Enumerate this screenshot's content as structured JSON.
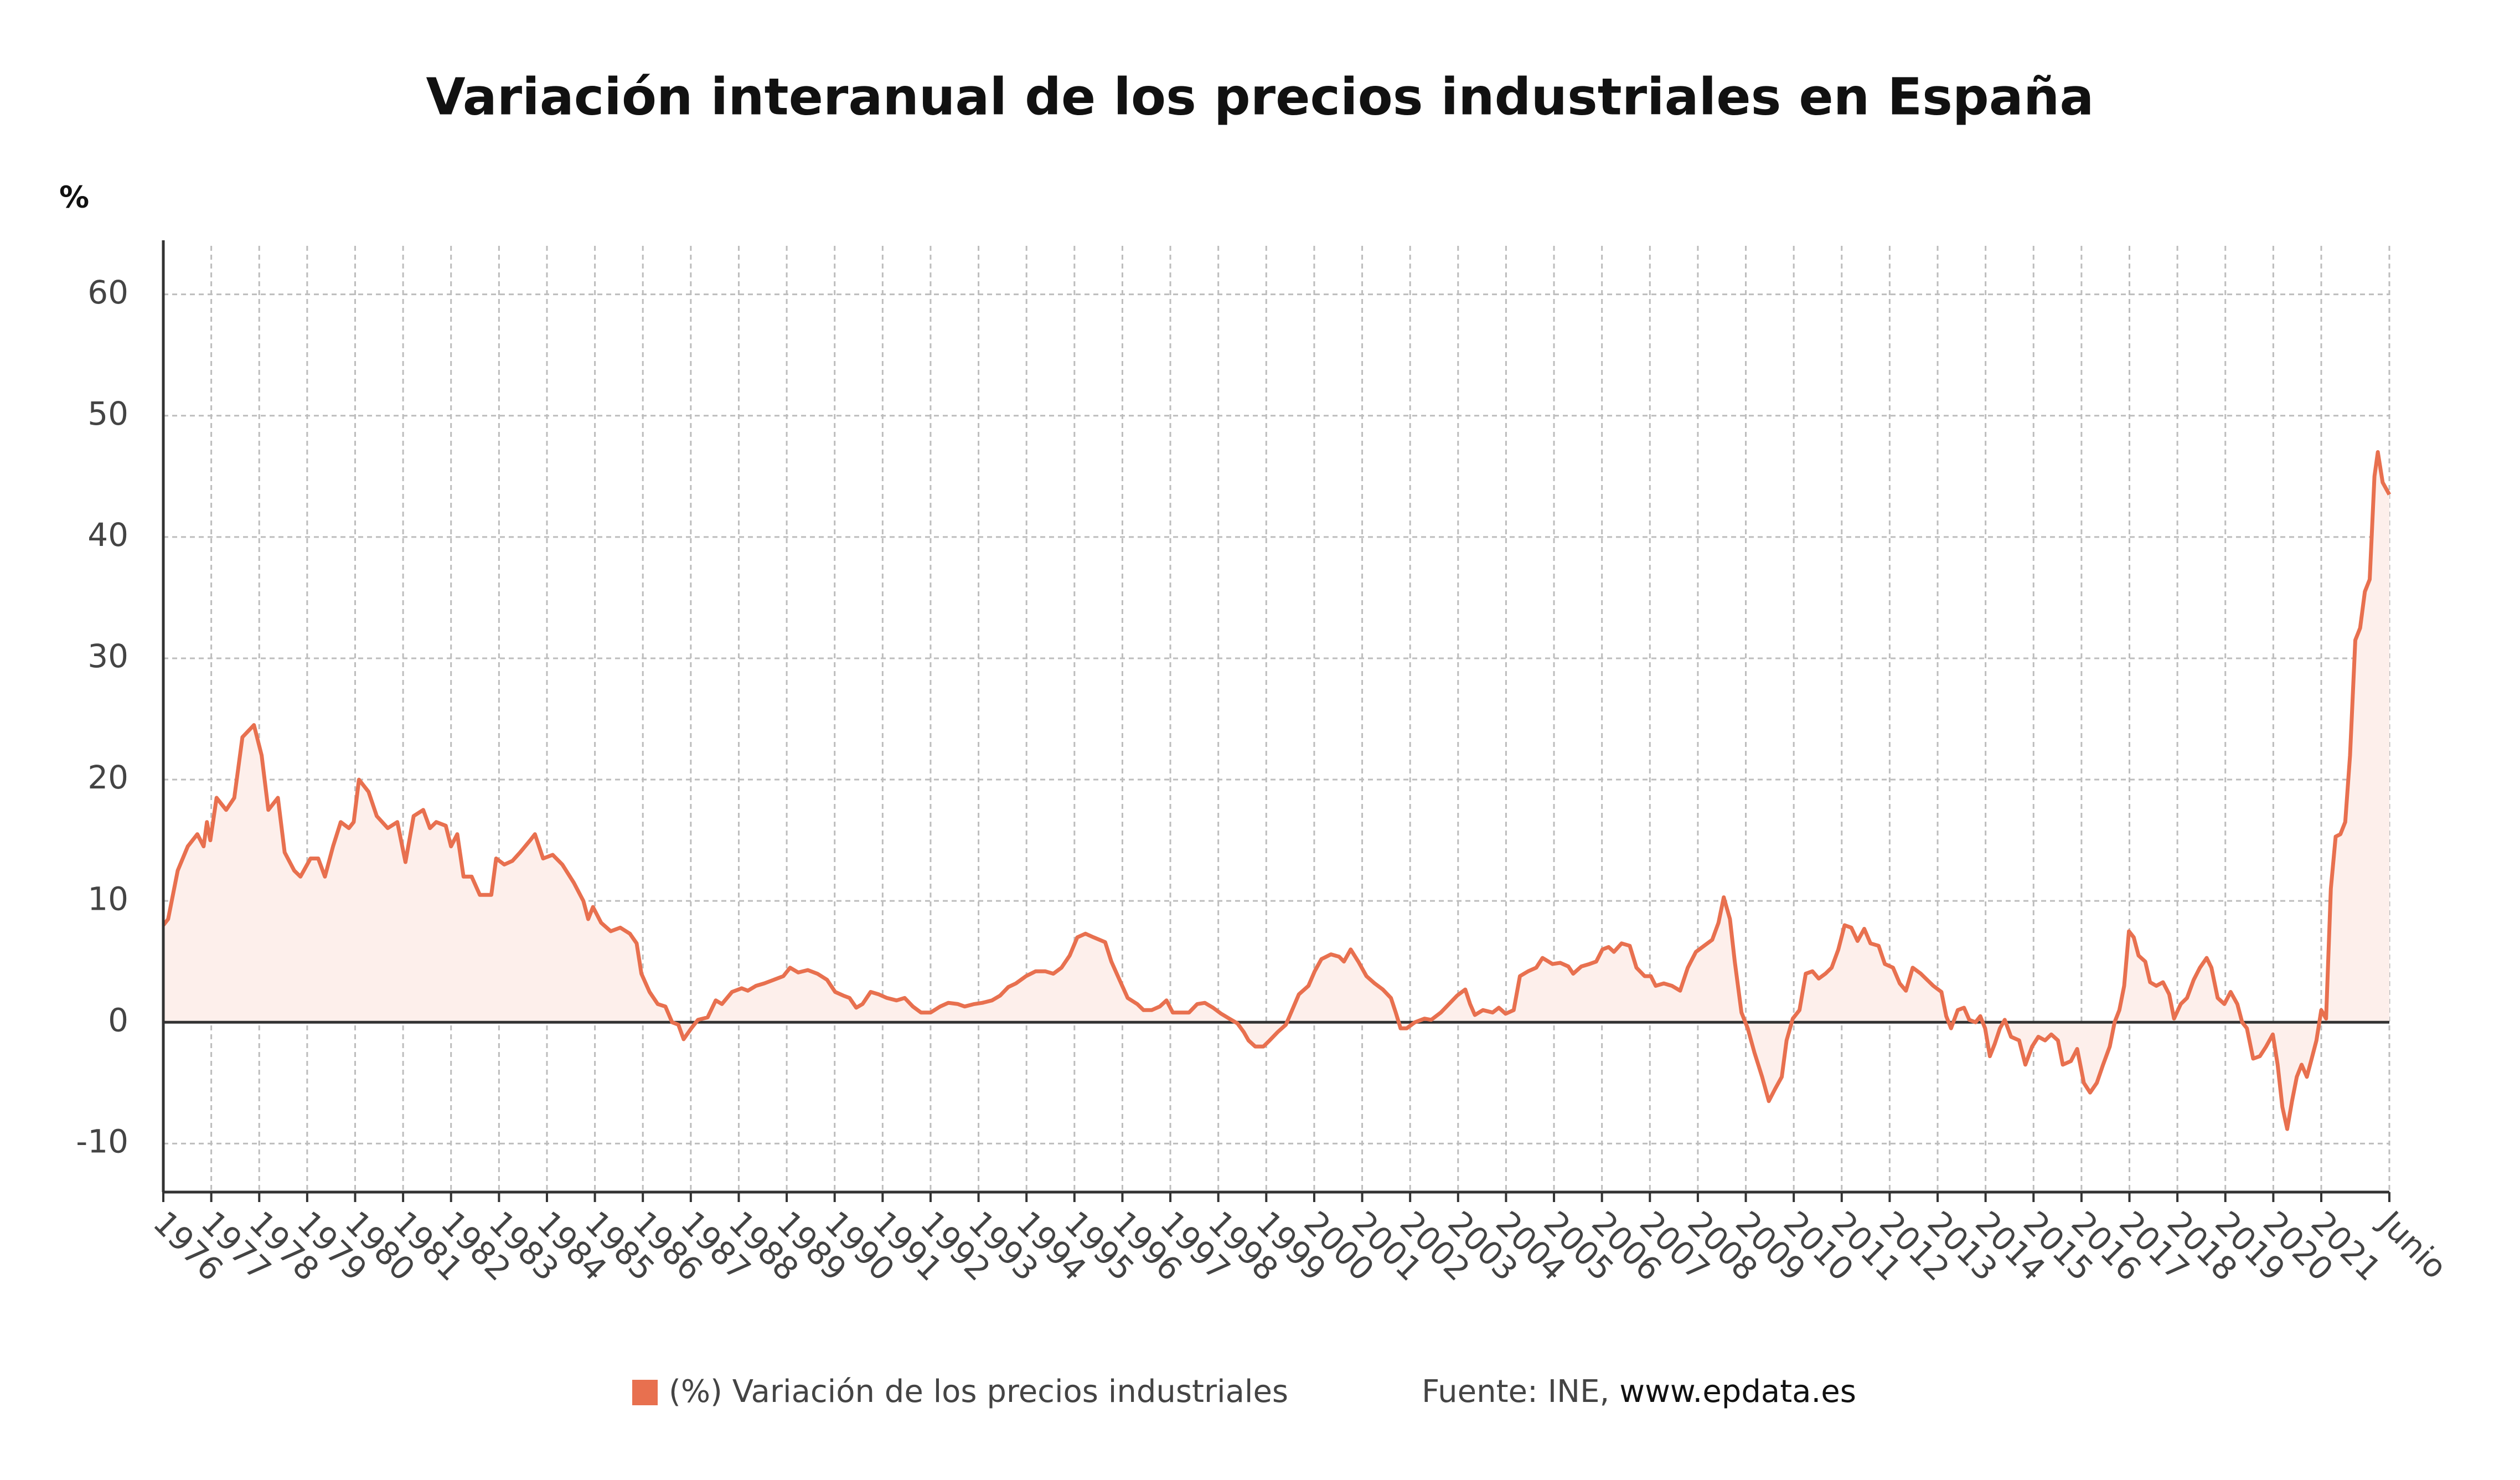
{
  "chart_data": {
    "type": "line",
    "title": "Variación interanual de los precios industriales en España",
    "y_label": "%",
    "source": {
      "text": "Fuente: INE,",
      "link": "www.epdata.es"
    },
    "grid": true,
    "fill_area": true,
    "xlim": [
      1976,
      2022.42
    ],
    "ylim": [
      -14,
      64
    ],
    "yticks": [
      -10,
      0,
      10,
      20,
      30,
      40,
      50,
      60
    ],
    "xticks": [
      1976,
      1977,
      1978,
      1979,
      1980,
      1981,
      1982,
      1983,
      1984,
      1985,
      1986,
      1987,
      1988,
      1989,
      1990,
      1991,
      1992,
      1993,
      1994,
      1995,
      1996,
      1997,
      1998,
      1999,
      2000,
      2001,
      2002,
      2003,
      2004,
      2005,
      2006,
      2007,
      2008,
      2009,
      2010,
      2011,
      2012,
      2013,
      2014,
      2015,
      2016,
      2017,
      2018,
      2019,
      2020,
      2021,
      {
        "value": 2022.42,
        "label": "Junio"
      }
    ],
    "x": [
      1976.0,
      1976.1,
      1976.3,
      1976.51,
      1976.71,
      1976.84,
      1976.91,
      1976.98,
      1977.11,
      1977.31,
      1977.48,
      1977.65,
      1977.89,
      1978.05,
      1978.19,
      1978.39,
      1978.53,
      1978.73,
      1978.86,
      1979.07,
      1979.23,
      1979.37,
      1979.54,
      1979.7,
      1979.87,
      1979.97,
      1980.08,
      1980.28,
      1980.45,
      1980.68,
      1980.88,
      1981.05,
      1981.22,
      1981.42,
      1981.56,
      1981.69,
      1981.89,
      1982.0,
      1982.13,
      1982.26,
      1982.43,
      1982.6,
      1982.84,
      1982.94,
      1983.11,
      1983.28,
      1983.44,
      1983.65,
      1983.75,
      1983.92,
      1984.12,
      1984.32,
      1984.56,
      1984.76,
      1984.86,
      1984.96,
      1985.13,
      1985.33,
      1985.53,
      1985.73,
      1985.87,
      1985.97,
      1986.14,
      1986.31,
      1986.47,
      1986.61,
      1986.74,
      1986.85,
      1987.01,
      1987.15,
      1987.35,
      1987.52,
      1987.65,
      1987.86,
      1988.06,
      1988.19,
      1988.36,
      1988.53,
      1988.73,
      1988.93,
      1989.07,
      1989.24,
      1989.44,
      1989.64,
      1989.84,
      1990.01,
      1990.18,
      1990.31,
      1990.45,
      1990.58,
      1990.75,
      1990.92,
      1991.09,
      1991.29,
      1991.46,
      1991.63,
      1991.8,
      1992.0,
      1992.2,
      1992.37,
      1992.57,
      1992.71,
      1992.91,
      1993.08,
      1993.28,
      1993.45,
      1993.62,
      1993.78,
      1993.99,
      1994.19,
      1994.39,
      1994.56,
      1994.73,
      1994.9,
      1995.06,
      1995.23,
      1995.4,
      1995.64,
      1995.77,
      1995.94,
      1996.11,
      1996.31,
      1996.44,
      1996.61,
      1996.78,
      1996.92,
      1997.05,
      1997.22,
      1997.39,
      1997.56,
      1997.72,
      1997.89,
      1998.06,
      1998.23,
      1998.4,
      1998.53,
      1998.63,
      1998.77,
      1998.94,
      1999.07,
      1999.24,
      1999.41,
      1999.54,
      1999.68,
      1999.88,
      2000.01,
      2000.15,
      2000.35,
      2000.52,
      2000.62,
      2000.76,
      2000.92,
      2001.09,
      2001.26,
      2001.43,
      2001.6,
      2001.7,
      2001.8,
      2001.93,
      2002.1,
      2002.3,
      2002.44,
      2002.64,
      2002.81,
      2002.98,
      2003.15,
      2003.25,
      2003.35,
      2003.52,
      2003.72,
      2003.85,
      2003.99,
      2004.16,
      2004.29,
      2004.46,
      2004.63,
      2004.76,
      2004.97,
      2005.13,
      2005.3,
      2005.4,
      2005.57,
      2005.74,
      2005.88,
      2006.01,
      2006.14,
      2006.25,
      2006.41,
      2006.58,
      2006.72,
      2006.89,
      2007.02,
      2007.12,
      2007.29,
      2007.46,
      2007.63,
      2007.79,
      2007.96,
      2008.13,
      2008.3,
      2008.43,
      2008.54,
      2008.67,
      2008.77,
      2008.91,
      2009.04,
      2009.18,
      2009.34,
      2009.48,
      2009.61,
      2009.75,
      2009.85,
      2009.98,
      2010.12,
      2010.25,
      2010.39,
      2010.52,
      2010.66,
      2010.79,
      2010.93,
      2011.06,
      2011.2,
      2011.33,
      2011.47,
      2011.6,
      2011.77,
      2011.9,
      2012.07,
      2012.21,
      2012.34,
      2012.48,
      2012.65,
      2012.78,
      2012.91,
      2013.08,
      2013.18,
      2013.28,
      2013.42,
      2013.55,
      2013.66,
      2013.79,
      2013.89,
      2013.99,
      2014.09,
      2014.19,
      2014.3,
      2014.4,
      2014.53,
      2014.7,
      2014.83,
      2014.97,
      2015.1,
      2015.24,
      2015.37,
      2015.51,
      2015.61,
      2015.78,
      2015.91,
      2016.05,
      2016.18,
      2016.32,
      2016.45,
      2016.59,
      2016.69,
      2016.79,
      2016.89,
      2016.99,
      2017.09,
      2017.19,
      2017.33,
      2017.43,
      2017.56,
      2017.7,
      2017.83,
      2017.93,
      2018.07,
      2018.2,
      2018.34,
      2018.47,
      2018.61,
      2018.71,
      2018.84,
      2018.98,
      2019.11,
      2019.25,
      2019.35,
      2019.45,
      2019.58,
      2019.72,
      2019.85,
      2019.99,
      2020.09,
      2020.19,
      2020.29,
      2020.39,
      2020.49,
      2020.59,
      2020.7,
      2020.8,
      2020.9,
      2021.0,
      2021.1,
      2021.2,
      2021.3,
      2021.4,
      2021.5,
      2021.6,
      2021.71,
      2021.81,
      2021.91,
      2022.01,
      2022.11,
      2022.18,
      2022.28,
      2022.42
    ],
    "series": [
      {
        "name": "(%) Variación de los precios industriales",
        "color": "#e8704f",
        "fill_color": "#fdefeb",
        "values": [
          8,
          8.5,
          12.5,
          14.5,
          15.5,
          14.5,
          16.5,
          15,
          18.5,
          17.5,
          18.5,
          23.5,
          24.5,
          22,
          17.5,
          18.5,
          14,
          12.5,
          12,
          13.5,
          13.5,
          12,
          14.5,
          16.5,
          16,
          16.5,
          20,
          19,
          17,
          16,
          16.5,
          13.2,
          17,
          17.5,
          16,
          16.5,
          16.2,
          14.5,
          15.5,
          12,
          12,
          10.5,
          10.5,
          13.5,
          13,
          13.3,
          14,
          15,
          15.5,
          13.5,
          13.8,
          13,
          11.5,
          10,
          8.5,
          9.5,
          8.2,
          7.5,
          7.8,
          7.3,
          6.5,
          4,
          2.5,
          1.5,
          1.3,
          0,
          -0.2,
          -1.4,
          -0.5,
          0.2,
          0.4,
          1.8,
          1.5,
          2.5,
          2.8,
          2.6,
          3,
          3.2,
          3.5,
          3.8,
          4.5,
          4.1,
          4.3,
          4,
          3.5,
          2.5,
          2.2,
          2,
          1.2,
          1.5,
          2.5,
          2.3,
          2,
          1.8,
          2,
          1.3,
          0.8,
          0.8,
          1.3,
          1.6,
          1.5,
          1.3,
          1.5,
          1.6,
          1.8,
          2.2,
          2.9,
          3.2,
          3.8,
          4.2,
          4.2,
          4,
          4.5,
          5.5,
          7,
          7.3,
          7,
          6.6,
          5,
          3.5,
          2,
          1.5,
          1,
          1,
          1.3,
          1.8,
          0.8,
          0.8,
          0.8,
          1.5,
          1.6,
          1.2,
          0.7,
          0.3,
          -0.1,
          -0.8,
          -1.5,
          -2,
          -2,
          -1.5,
          -0.8,
          -0.2,
          1,
          2.3,
          3,
          4.2,
          5.2,
          5.6,
          5.4,
          5,
          6,
          5,
          3.8,
          3.2,
          2.7,
          2,
          0.8,
          -0.5,
          -0.5,
          0,
          0.3,
          0.2,
          0.8,
          1.5,
          2.2,
          2.7,
          1.5,
          0.6,
          1,
          0.8,
          1.2,
          0.7,
          1,
          3.8,
          4.2,
          4.5,
          5.3,
          4.8,
          4.9,
          4.6,
          4,
          4.6,
          4.8,
          5,
          6,
          6.2,
          5.8,
          6.5,
          6.3,
          4.5,
          3.8,
          3.8,
          3,
          3.2,
          3,
          2.6,
          4.5,
          5.8,
          6.3,
          6.8,
          8.2,
          10.3,
          8.5,
          5,
          0.8,
          -0.5,
          -2.5,
          -4.5,
          -6.5,
          -5.5,
          -4.5,
          -1.5,
          0.3,
          1,
          4,
          4.2,
          3.6,
          4,
          4.5,
          6,
          8,
          7.8,
          6.7,
          7.7,
          6.5,
          6.3,
          4.8,
          4.5,
          3.2,
          2.6,
          4.5,
          4,
          3.5,
          3,
          2.5,
          0.5,
          -0.5,
          1,
          1.2,
          0.2,
          0,
          0.5,
          -0.5,
          -2.8,
          -1.8,
          -0.5,
          0.2,
          -1.2,
          -1.5,
          -3.5,
          -2,
          -1.2,
          -1.5,
          -1,
          -1.5,
          -3.5,
          -3.2,
          -2.2,
          -5,
          -5.8,
          -5,
          -3.5,
          -2,
          0,
          1,
          3,
          7.5,
          7,
          5.5,
          5,
          3.3,
          3,
          3.3,
          2.3,
          0.3,
          1.5,
          2,
          3.5,
          4.5,
          5.3,
          4.5,
          2,
          1.5,
          2.5,
          1.5,
          0,
          -0.5,
          -3,
          -2.8,
          -2,
          -1,
          -3.5,
          -7,
          -8.8,
          -6.5,
          -4.5,
          -3.5,
          -4.5,
          -3,
          -1.5,
          1,
          0.3,
          11,
          15.3,
          15.5,
          16.5,
          22,
          31.5,
          32.5,
          35.5,
          36.5,
          45,
          47,
          44.5,
          43.5
        ]
      }
    ]
  }
}
